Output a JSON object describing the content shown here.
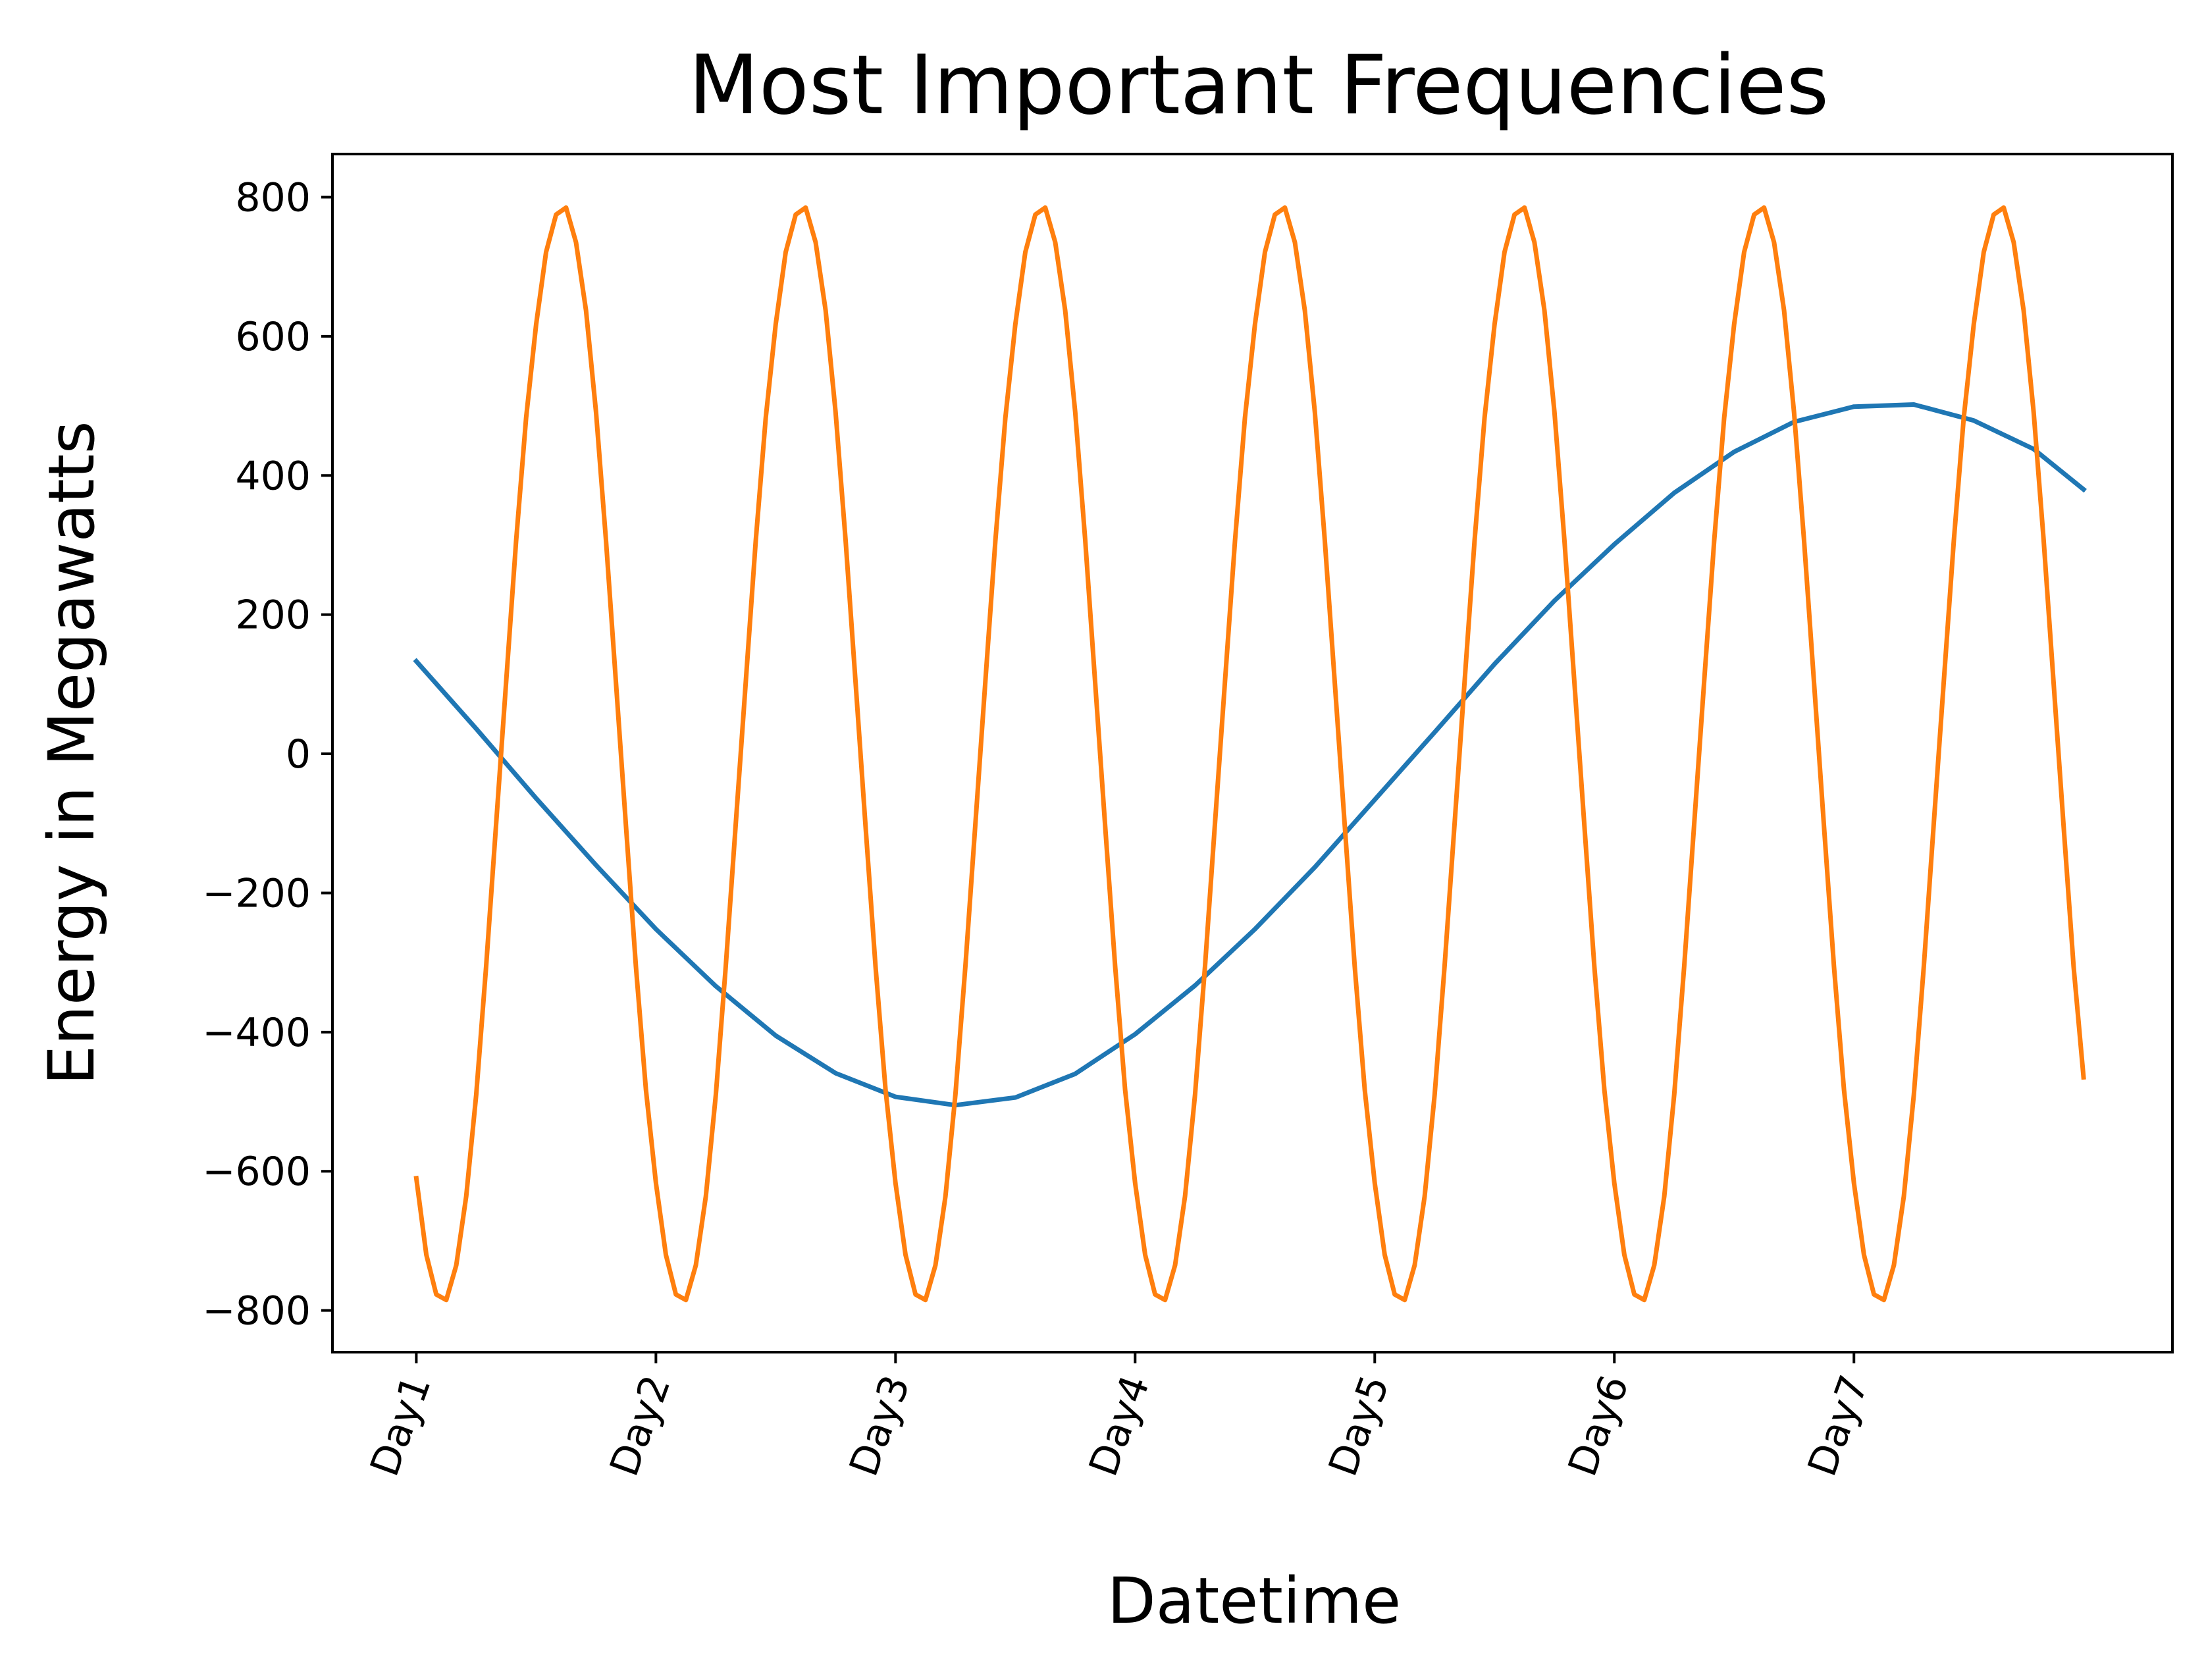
{
  "chart_data": {
    "type": "line",
    "title": "Most Important Frequencies",
    "xlabel": "Datetime",
    "ylabel": "Energy in Megawatts",
    "x_tick_labels": [
      "Day1",
      "Day2",
      "Day3",
      "Day4",
      "Day5",
      "Day6",
      "Day7"
    ],
    "x_tick_positions": [
      0,
      24,
      48,
      72,
      96,
      120,
      144
    ],
    "xlim": [
      -8.4,
      175.9
    ],
    "y_ticks": [
      -800,
      -600,
      -400,
      -200,
      0,
      200,
      400,
      600,
      800
    ],
    "y_tick_labels": [
      "−800",
      "−600",
      "−400",
      "−200",
      "0",
      "200",
      "400",
      "600",
      "800"
    ],
    "ylim": [
      -860,
      862
    ],
    "grid": false,
    "legend": "none",
    "series": [
      {
        "color": "#1f77b4",
        "x": [
          0,
          6,
          12,
          18,
          24,
          30,
          36,
          42,
          48,
          54,
          60,
          66,
          72,
          78,
          84,
          90,
          96,
          102,
          108,
          114,
          120,
          126,
          132,
          138,
          144,
          150,
          156,
          162,
          167
        ],
        "values": [
          133,
          36,
          -64,
          -160,
          -252,
          -334,
          -405,
          -459,
          -493,
          -505,
          -494,
          -460,
          -403,
          -333,
          -252,
          -163,
          -66,
          31,
          129,
          220,
          301,
          375,
          434,
          477,
          499,
          502,
          479,
          438,
          380
        ]
      },
      {
        "color": "#ff7f0e",
        "x": [
          0,
          1,
          2,
          3,
          4,
          5,
          6,
          7,
          8,
          9,
          10,
          11,
          12,
          13,
          14,
          15,
          16,
          17,
          18,
          19,
          20,
          21,
          22,
          23,
          24,
          25,
          26,
          27,
          28,
          29,
          30,
          31,
          32,
          33,
          34,
          35,
          36,
          37,
          38,
          39,
          40,
          41,
          42,
          43,
          44,
          45,
          46,
          47,
          48,
          49,
          50,
          51,
          52,
          53,
          54,
          55,
          56,
          57,
          58,
          59,
          60,
          61,
          62,
          63,
          64,
          65,
          66,
          67,
          68,
          69,
          70,
          71,
          72,
          73,
          74,
          75,
          76,
          77,
          78,
          79,
          80,
          81,
          82,
          83,
          84,
          85,
          86,
          87,
          88,
          89,
          90,
          91,
          92,
          93,
          94,
          95,
          96,
          97,
          98,
          99,
          100,
          101,
          102,
          103,
          104,
          105,
          106,
          107,
          108,
          109,
          110,
          111,
          112,
          113,
          114,
          115,
          116,
          117,
          118,
          119,
          120,
          121,
          122,
          123,
          124,
          125,
          126,
          127,
          128,
          129,
          130,
          131,
          132,
          133,
          134,
          135,
          136,
          137,
          138,
          139,
          140,
          141,
          142,
          143,
          144,
          145,
          146,
          147,
          148,
          149,
          150,
          151,
          152,
          153,
          154,
          155,
          156,
          157,
          158,
          159,
          160,
          161,
          162,
          163,
          164,
          165,
          166,
          167
        ],
        "values": [
          -610,
          -720,
          -777,
          -785,
          -735,
          -636,
          -490,
          -305,
          -100,
          104,
          306,
          483,
          617,
          721,
          775,
          785,
          735,
          637,
          491,
          307,
          102,
          -104,
          -306,
          -483,
          -617,
          -720,
          -777,
          -785,
          -735,
          -636,
          -490,
          -305,
          -100,
          104,
          306,
          483,
          617,
          721,
          775,
          785,
          735,
          637,
          491,
          307,
          102,
          -104,
          -306,
          -483,
          -617,
          -720,
          -777,
          -785,
          -735,
          -636,
          -490,
          -305,
          -100,
          104,
          306,
          483,
          617,
          721,
          775,
          785,
          735,
          637,
          491,
          307,
          102,
          -104,
          -306,
          -483,
          -617,
          -720,
          -777,
          -785,
          -735,
          -636,
          -490,
          -305,
          -100,
          104,
          306,
          483,
          617,
          721,
          775,
          785,
          735,
          637,
          491,
          307,
          102,
          -104,
          -306,
          -483,
          -617,
          -720,
          -777,
          -785,
          -735,
          -636,
          -490,
          -305,
          -100,
          104,
          306,
          483,
          617,
          721,
          775,
          785,
          735,
          637,
          491,
          307,
          102,
          -104,
          -306,
          -483,
          -617,
          -720,
          -777,
          -785,
          -735,
          -636,
          -490,
          -305,
          -100,
          104,
          306,
          483,
          617,
          721,
          775,
          785,
          735,
          637,
          491,
          307,
          102,
          -104,
          -306,
          -483,
          -617,
          -720,
          -777,
          -785,
          -735,
          -636,
          -490,
          -305,
          -100,
          104,
          306,
          483,
          617,
          721,
          775,
          785,
          735,
          637,
          491,
          307,
          102,
          -104,
          -306,
          -465
        ]
      }
    ]
  }
}
